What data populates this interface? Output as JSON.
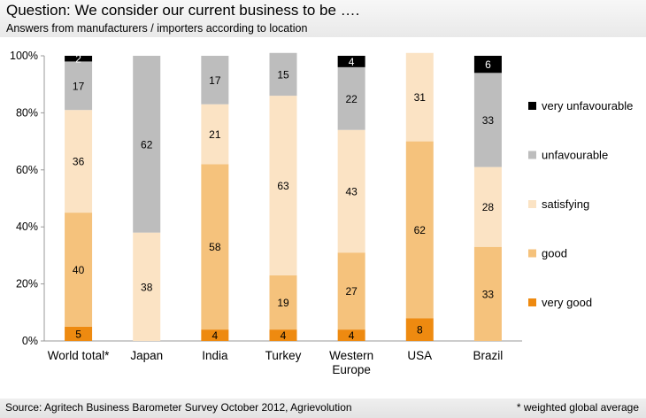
{
  "header": {
    "title": "Question: We consider our current business to be ….",
    "subtitle": "Answers from manufacturers / importers according to location"
  },
  "footer": {
    "source": "Source: Agritech Business Barometer Survey October 2012, Agrievolution",
    "footnote": "* weighted global average"
  },
  "chart_data": {
    "type": "bar",
    "stacked": true,
    "percent": true,
    "categories": [
      "World total*",
      "Japan",
      "India",
      "Turkey",
      "Western Europe",
      "USA",
      "Brazil"
    ],
    "category_lines": [
      [
        "World total*"
      ],
      [
        "Japan"
      ],
      [
        "India"
      ],
      [
        "Turkey"
      ],
      [
        "Western",
        "Europe"
      ],
      [
        "USA"
      ],
      [
        "Brazil"
      ]
    ],
    "series": [
      {
        "name": "very good",
        "color": "#ee8a10",
        "label_color": "#000000",
        "values": [
          5,
          0,
          4,
          4,
          4,
          8,
          0
        ]
      },
      {
        "name": "good",
        "color": "#f5c27c",
        "label_color": "#000000",
        "values": [
          40,
          0,
          58,
          19,
          27,
          62,
          33
        ]
      },
      {
        "name": "satisfying",
        "color": "#fbe3c4",
        "label_color": "#000000",
        "values": [
          36,
          38,
          21,
          63,
          43,
          31,
          28
        ]
      },
      {
        "name": "unfavourable",
        "color": "#bdbdbd",
        "label_color": "#000000",
        "values": [
          17,
          62,
          17,
          15,
          22,
          0,
          33
        ]
      },
      {
        "name": "very unfavourable",
        "color": "#000000",
        "label_color": "#ffffff",
        "values": [
          2,
          0,
          0,
          0,
          4,
          0,
          6
        ]
      }
    ],
    "yticks": [
      "0%",
      "20%",
      "40%",
      "60%",
      "80%",
      "100%"
    ],
    "ylim": [
      0,
      100
    ],
    "legend_position": "right",
    "grid": false
  }
}
